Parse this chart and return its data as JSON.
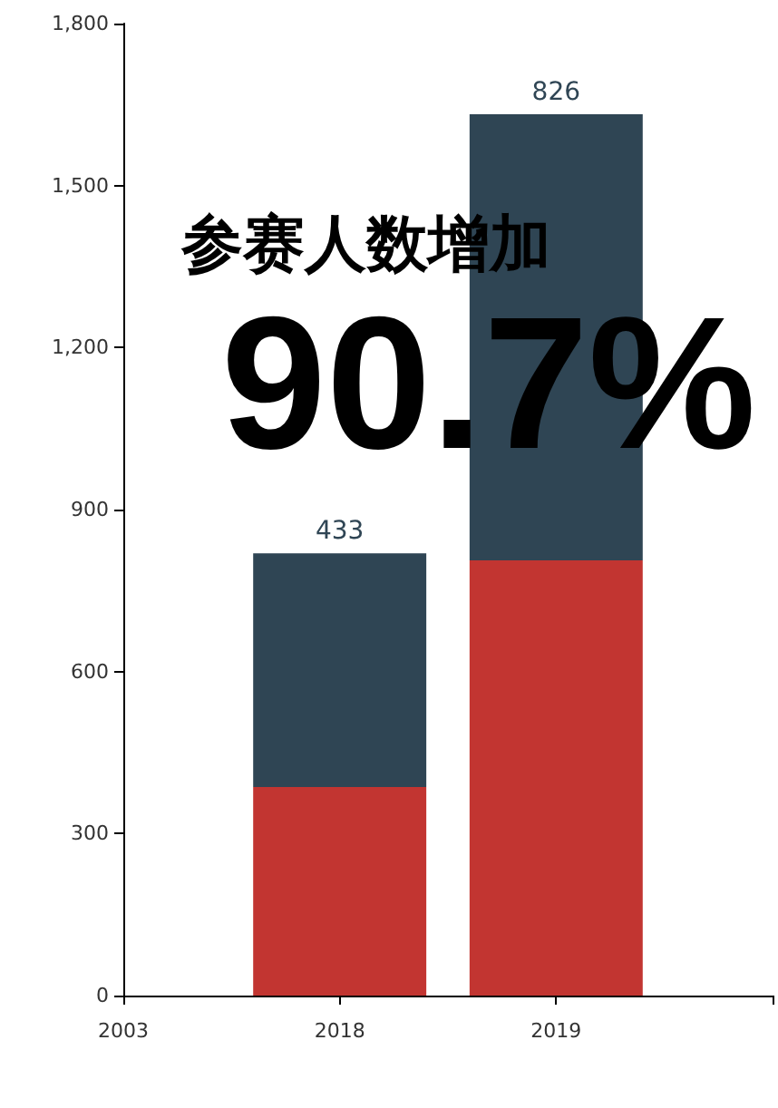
{
  "chart_data": {
    "type": "bar",
    "stacked": true,
    "categories": [
      "2003",
      "2018",
      "2019",
      null
    ],
    "series": [
      {
        "color": "#c23531",
        "values": [
          null,
          386,
          806,
          null
        ]
      },
      {
        "color": "#2f4554",
        "values": [
          null,
          433,
          826,
          null
        ],
        "value_labels": [
          null,
          "433",
          "826",
          null
        ]
      }
    ],
    "ylim": [
      0,
      1800
    ],
    "yticks": [
      0,
      300,
      600,
      900,
      {
        "value": 1200,
        "label": "1,200"
      },
      {
        "value": 1500,
        "label": "1,500"
      },
      {
        "value": 1800,
        "label": "1,800"
      }
    ],
    "grid": false,
    "annotations": [
      "参赛人数增加",
      "90.7%"
    ]
  }
}
